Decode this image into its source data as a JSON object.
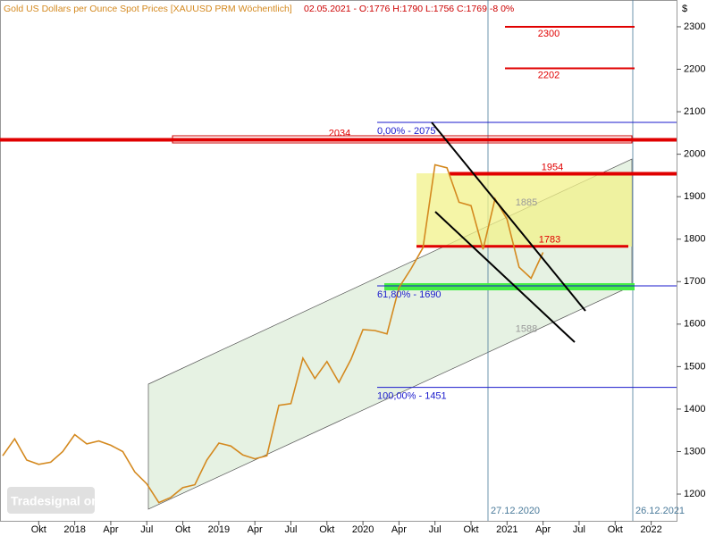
{
  "chart_data": {
    "type": "line",
    "title": "Gold US Dollars per Ounce Spot Prices [XAUUSD PRM  Wöchentlich]",
    "quote": "02.05.2021 - O:1776 H:1790 L:1756 C:1769 -8 0%",
    "y_unit": "$",
    "x": [
      "2017-07",
      "2017-08",
      "2017-09",
      "2017-10",
      "2017-11",
      "2017-12",
      "2018-01",
      "2018-02",
      "2018-03",
      "2018-04",
      "2018-05",
      "2018-06",
      "2018-07",
      "2018-08",
      "2018-09",
      "2018-10",
      "2018-11",
      "2018-12",
      "2019-01",
      "2019-02",
      "2019-03",
      "2019-04",
      "2019-05",
      "2019-06",
      "2019-07",
      "2019-08",
      "2019-09",
      "2019-10",
      "2019-11",
      "2019-12",
      "2020-01",
      "2020-02",
      "2020-03",
      "2020-04",
      "2020-05",
      "2020-06",
      "2020-07",
      "2020-08",
      "2020-09",
      "2020-10",
      "2020-11",
      "2020-12",
      "2021-01",
      "2021-02",
      "2021-03",
      "2021-04"
    ],
    "series": [
      {
        "name": "XAUUSD",
        "color": "#d4891f",
        "values": [
          1290,
          1330,
          1280,
          1270,
          1275,
          1300,
          1340,
          1318,
          1325,
          1315,
          1300,
          1252,
          1224,
          1180,
          1192,
          1215,
          1222,
          1280,
          1320,
          1313,
          1292,
          1283,
          1290,
          1409,
          1413,
          1520,
          1472,
          1512,
          1463,
          1517,
          1587,
          1585,
          1577,
          1686,
          1730,
          1780,
          1975,
          1968,
          1887,
          1879,
          1776,
          1895,
          1847,
          1734,
          1708,
          1769
        ]
      }
    ],
    "xlim": [
      "2017-07",
      "2022-02"
    ],
    "xticks": [
      {
        "value": "2017-10",
        "label": "Okt"
      },
      {
        "value": "2018-01",
        "label": "2018"
      },
      {
        "value": "2018-04",
        "label": "Apr"
      },
      {
        "value": "2018-07",
        "label": "Jul"
      },
      {
        "value": "2018-10",
        "label": "Okt"
      },
      {
        "value": "2019-01",
        "label": "2019"
      },
      {
        "value": "2019-04",
        "label": "Apr"
      },
      {
        "value": "2019-07",
        "label": "Jul"
      },
      {
        "value": "2019-10",
        "label": "Okt"
      },
      {
        "value": "2020-01",
        "label": "2020"
      },
      {
        "value": "2020-04",
        "label": "Apr"
      },
      {
        "value": "2020-07",
        "label": "Jul"
      },
      {
        "value": "2020-10",
        "label": "Okt"
      },
      {
        "value": "2021-01",
        "label": "2021"
      },
      {
        "value": "2021-04",
        "label": "Apr"
      },
      {
        "value": "2021-07",
        "label": "Jul"
      },
      {
        "value": "2021-10",
        "label": "Okt"
      },
      {
        "value": "2022-01",
        "label": "2022"
      }
    ],
    "ylim": [
      1137,
      2363
    ],
    "yticks": [
      1200,
      1300,
      1400,
      1500,
      1600,
      1700,
      1800,
      1900,
      2000,
      2100,
      2200,
      2300
    ],
    "levels": [
      2300,
      2202,
      2034,
      1954,
      1783
    ],
    "level_color": "#e00000",
    "zone_labels": [
      1885,
      1588
    ],
    "fib_levels": [
      {
        "value": 2075,
        "label": "0,00% - 2075"
      },
      {
        "value": 1690,
        "label": "61,80% - 1690"
      },
      {
        "value": 1451,
        "label": "100,00% - 1451"
      }
    ],
    "fib_color": "#1a1acc",
    "vertical_markers": [
      "27.12.2020",
      "26.12.2021"
    ],
    "logo": "Tradesignal online"
  }
}
